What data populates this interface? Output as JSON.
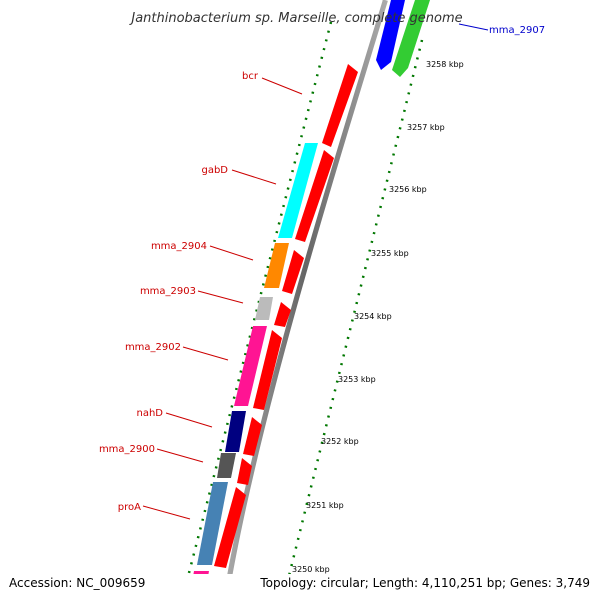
{
  "title": "Janthinobacterium sp. Marseille, complete genome",
  "accession": "Accession: NC_009659",
  "topology": "Topology: circular; Length: 4,110,251 bp; Genes: 3,749",
  "ticks": [
    "3258 kbp",
    "3257 kbp",
    "3256 kbp",
    "3255 kbp",
    "3254 kbp",
    "3253 kbp",
    "3252 kbp",
    "3251 kbp",
    "3250 kbp"
  ],
  "gene_labels": [
    {
      "text": "mma_2907",
      "color": "#0000cc"
    },
    {
      "text": "bcr",
      "color": "#cc0000"
    },
    {
      "text": "gabD",
      "color": "#cc0000"
    },
    {
      "text": "mma_2904",
      "color": "#cc0000"
    },
    {
      "text": "mma_2903",
      "color": "#cc0000"
    },
    {
      "text": "mma_2902",
      "color": "#cc0000"
    },
    {
      "text": "nahD",
      "color": "#cc0000"
    },
    {
      "text": "mma_2900",
      "color": "#cc0000"
    },
    {
      "text": "proA",
      "color": "#cc0000"
    }
  ],
  "colors": {
    "cds": "#ff0000",
    "cog_cyan": "#00ffff",
    "cog_orange": "#ff8800",
    "cog_lightgray": "#bbbbbb",
    "cog_pink": "#ff1493",
    "cog_navy": "#000080",
    "cog_darkgray": "#555555",
    "cog_steelblue": "#4682b4",
    "cog_blue": "#0000ff",
    "cog_green": "#33cc33",
    "backbone": "#888888",
    "dots": "#007700"
  }
}
